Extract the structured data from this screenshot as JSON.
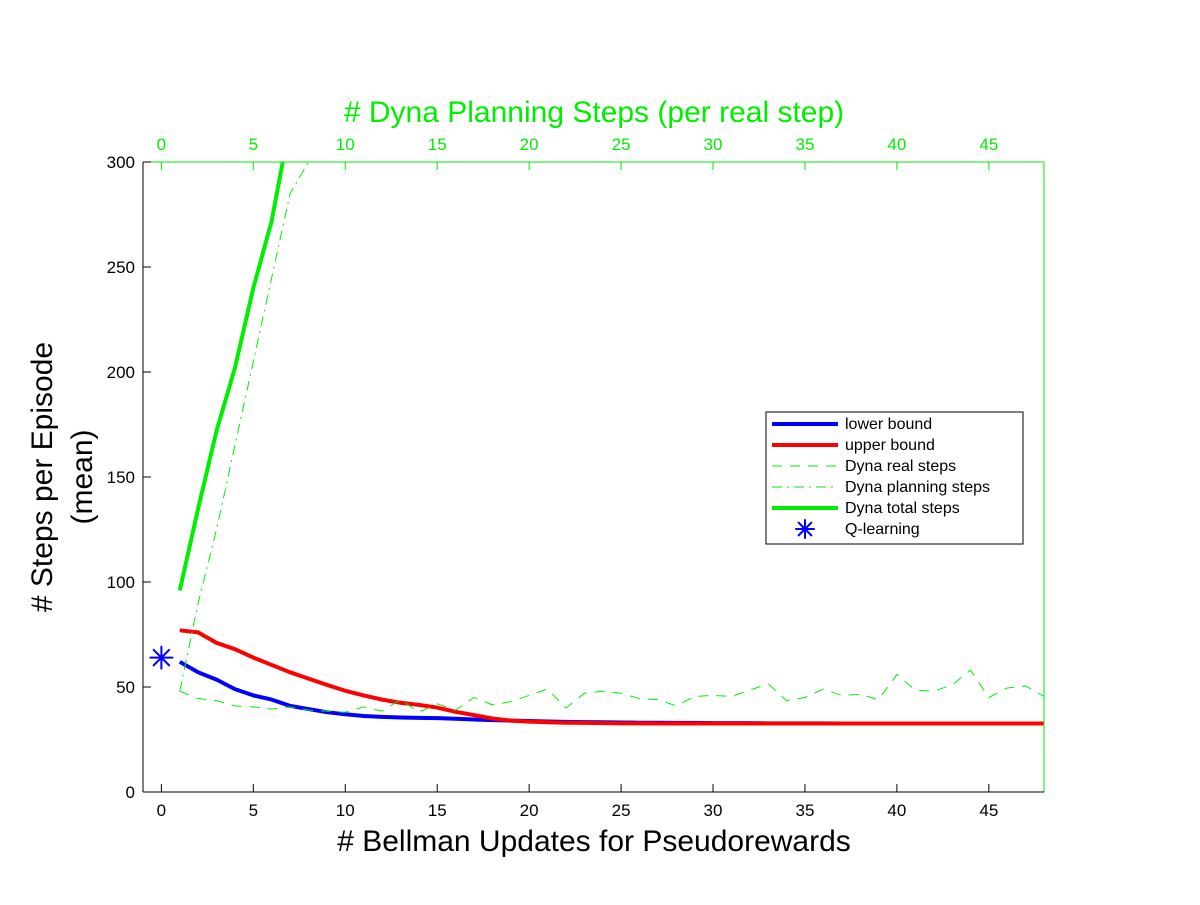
{
  "chart_data": {
    "type": "line",
    "title": "",
    "xlabel": "# Bellman Updates for Pseudorewards",
    "ylabel_lines": [
      "# Steps per Episode",
      "(mean)"
    ],
    "top_xlabel": "# Dyna Planning Steps (per real step)",
    "xlim": [
      -1,
      48
    ],
    "ylim": [
      0,
      300
    ],
    "xticks": [
      0,
      5,
      10,
      15,
      20,
      25,
      30,
      35,
      40,
      45
    ],
    "yticks": [
      0,
      50,
      100,
      150,
      200,
      250,
      300
    ],
    "top_xticks": [
      0,
      5,
      10,
      15,
      20,
      25,
      30,
      35,
      40,
      45
    ],
    "grid": false,
    "legend_position": "right",
    "colors": {
      "blue": "#0000ff",
      "red": "#ff0000",
      "green": "#00ee00",
      "axis": "#000000",
      "top_axis": "#00ee00"
    },
    "series": [
      {
        "name": "lower bound",
        "color": "#0000ff",
        "style": "solid",
        "width": 4,
        "x": [
          1,
          2,
          3,
          4,
          5,
          6,
          7,
          8,
          9,
          10,
          11,
          12,
          13,
          14,
          15,
          16,
          17,
          18,
          19,
          20,
          21,
          22,
          23,
          24,
          25,
          26,
          27,
          28,
          29,
          30,
          31,
          32,
          33,
          34,
          35,
          36,
          37,
          38,
          39,
          40,
          41,
          42,
          43,
          44,
          45,
          46,
          47,
          48
        ],
        "y": [
          62,
          57,
          53.5,
          49,
          46,
          44,
          41,
          39.5,
          38,
          37,
          36.2,
          35.8,
          35.5,
          35.3,
          35.2,
          34.9,
          34.5,
          34.2,
          34,
          33.8,
          33.6,
          33.4,
          33.3,
          33.2,
          33.1,
          33,
          33,
          32.9,
          32.9,
          32.8,
          32.8,
          32.8,
          32.7,
          32.7,
          32.7,
          32.7,
          32.6,
          32.6,
          32.6,
          32.6,
          32.6,
          32.6,
          32.6,
          32.6,
          32.6,
          32.6,
          32.6,
          32.6
        ]
      },
      {
        "name": "upper bound",
        "color": "#ff0000",
        "style": "solid",
        "width": 4,
        "x": [
          1,
          2,
          3,
          4,
          5,
          6,
          7,
          8,
          9,
          10,
          11,
          12,
          13,
          14,
          15,
          16,
          17,
          18,
          19,
          20,
          21,
          22,
          23,
          24,
          25,
          26,
          27,
          28,
          29,
          30,
          31,
          32,
          33,
          34,
          35,
          36,
          37,
          38,
          39,
          40,
          41,
          42,
          43,
          44,
          45,
          46,
          47,
          48
        ],
        "y": [
          77,
          76,
          71,
          68,
          64,
          60.5,
          57,
          54,
          51,
          48.2,
          46,
          44,
          42.5,
          41.5,
          40.2,
          38.2,
          36.6,
          35,
          34,
          33.5,
          33.2,
          33,
          32.9,
          32.8,
          32.7,
          32.7,
          32.6,
          32.6,
          32.6,
          32.6,
          32.6,
          32.6,
          32.6,
          32.6,
          32.6,
          32.6,
          32.6,
          32.6,
          32.6,
          32.6,
          32.6,
          32.6,
          32.6,
          32.6,
          32.6,
          32.6,
          32.6,
          32.6
        ]
      },
      {
        "name": "Dyna real steps",
        "color": "#00ee00",
        "style": "dashed",
        "width": 1,
        "x": [
          1,
          2,
          3,
          4,
          5,
          6,
          7,
          8,
          9,
          10,
          11,
          12,
          13,
          14,
          15,
          16,
          17,
          18,
          19,
          20,
          21,
          22,
          23,
          24,
          25,
          26,
          27,
          28,
          29,
          30,
          31,
          32,
          33,
          34,
          35,
          36,
          37,
          38,
          39,
          40,
          41,
          42,
          43,
          44,
          45,
          46,
          47,
          48
        ],
        "y": [
          48,
          44.5,
          43.5,
          41,
          40.5,
          39.5,
          40.5,
          39,
          38.5,
          38,
          40.5,
          38.5,
          44,
          38,
          42,
          39,
          45,
          41.5,
          43,
          46,
          49,
          40,
          47,
          48,
          47,
          44.5,
          44,
          41,
          45.5,
          46,
          45.5,
          48.5,
          51.5,
          43.5,
          45,
          49,
          46,
          46.5,
          44,
          56,
          48.5,
          48,
          51,
          58,
          45,
          49.5,
          50.5,
          45.5
        ]
      },
      {
        "name": "Dyna planning steps",
        "color": "#00ee00",
        "style": "dashdot",
        "width": 1,
        "x": [
          1,
          2,
          3,
          4,
          5,
          6,
          7,
          8
        ],
        "y": [
          48,
          90,
          125,
          165,
          205,
          245,
          285,
          300
        ]
      },
      {
        "name": "Dyna total steps",
        "color": "#00ee00",
        "style": "solid",
        "width": 4,
        "x": [
          1,
          2,
          3,
          4,
          5,
          6,
          6.6
        ],
        "y": [
          96,
          135,
          172,
          202,
          240,
          272,
          300
        ]
      },
      {
        "name": "Q-learning",
        "color": "#0000ff",
        "style": "marker-asterisk",
        "width": 2,
        "x": [
          0
        ],
        "y": [
          64
        ]
      }
    ]
  }
}
